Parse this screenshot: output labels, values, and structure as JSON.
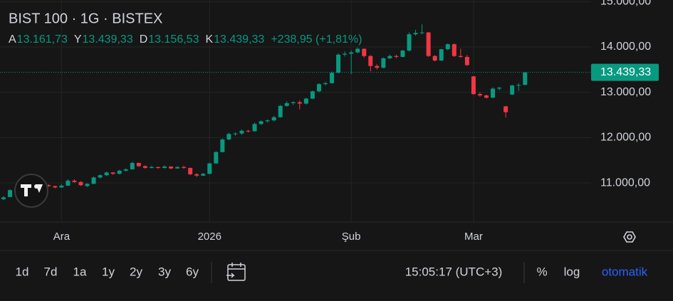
{
  "chart_data": {
    "type": "candlestick",
    "title": "BIST 100 · 1G · BISTEX",
    "ohlc_header": [
      {
        "label": "A",
        "value": "13.161,73"
      },
      {
        "label": "Y",
        "value": "13.439,33"
      },
      {
        "label": "D",
        "value": "13.156,53"
      },
      {
        "label": "K",
        "value": "13.439,33"
      }
    ],
    "change": "+238,95 (+1,81%)",
    "categories": [
      null,
      null,
      null,
      null,
      null,
      null,
      null,
      null,
      null,
      "Ara",
      null,
      null,
      null,
      null,
      null,
      null,
      null,
      null,
      null,
      null,
      null,
      null,
      null,
      null,
      null,
      null,
      null,
      null,
      null,
      null,
      null,
      null,
      "2026",
      null,
      null,
      null,
      null,
      null,
      null,
      null,
      null,
      null,
      null,
      null,
      null,
      null,
      null,
      null,
      null,
      null,
      null,
      null,
      null,
      null,
      "Şub",
      null,
      null,
      null,
      null,
      null,
      null,
      null,
      null,
      null,
      null,
      null,
      null,
      null,
      null,
      null,
      null,
      null,
      null,
      "Mar",
      null,
      null,
      null,
      null,
      null,
      null,
      null,
      null
    ],
    "open": [
      10640,
      10690,
      10840,
      10880,
      10920,
      10960,
      10990,
      10950,
      10930,
      10900,
      10940,
      11050,
      11020,
      10930,
      10980,
      11120,
      11170,
      11230,
      11200,
      11270,
      11300,
      11440,
      11370,
      11330,
      11350,
      11330,
      11360,
      11320,
      11350,
      11330,
      11190,
      11160,
      11200,
      11430,
      11680,
      11960,
      12080,
      12090,
      12150,
      12140,
      12300,
      12360,
      12380,
      12450,
      12700,
      12760,
      12780,
      12750,
      12860,
      13020,
      13180,
      13200,
      13430,
      13830,
      13850,
      13880,
      13960,
      13800,
      13580,
      13540,
      13750,
      13800,
      13780,
      13920,
      14280,
      14310,
      14320,
      13800,
      13700,
      13950,
      14060,
      13800,
      13780,
      13350,
      12960,
      12930,
      12880,
      13080,
      12690,
      12950,
      13150,
      13161.73
    ],
    "high": [
      10710,
      10860,
      10900,
      10930,
      10980,
      11010,
      11000,
      10970,
      10940,
      10970,
      11080,
      11080,
      11040,
      10990,
      11140,
      11190,
      11250,
      11240,
      11290,
      11320,
      11470,
      11450,
      11390,
      11380,
      11360,
      11390,
      11370,
      11370,
      11380,
      11340,
      11220,
      11220,
      11450,
      11700,
      11980,
      12110,
      12120,
      12180,
      12170,
      12330,
      12380,
      12400,
      12480,
      12720,
      12800,
      12800,
      12820,
      12880,
      13040,
      13200,
      13230,
      13460,
      13860,
      13900,
      13920,
      13990,
      13970,
      13820,
      13620,
      13770,
      13830,
      13830,
      13940,
      14320,
      14380,
      14500,
      14330,
      13820,
      13960,
      14080,
      14080,
      13960,
      13820,
      13360,
      13000,
      12950,
      13110,
      13120,
      12700,
      13170,
      13200,
      13439.33
    ],
    "low": [
      10620,
      10680,
      10820,
      10860,
      10900,
      10940,
      10930,
      10910,
      10880,
      10890,
      10930,
      11000,
      10930,
      10910,
      10970,
      11100,
      11150,
      11180,
      11190,
      11250,
      11290,
      11350,
      11310,
      11320,
      11310,
      11320,
      11300,
      11310,
      11310,
      11170,
      11130,
      11150,
      11190,
      11420,
      11670,
      11940,
      12040,
      12060,
      12110,
      12130,
      12280,
      12330,
      12360,
      12440,
      12680,
      12720,
      12620,
      12730,
      12850,
      13000,
      13150,
      13190,
      13420,
      13790,
      13400,
      13860,
      13760,
      13460,
      13500,
      13530,
      13730,
      13750,
      13770,
      13900,
      14250,
      14280,
      13780,
      13680,
      13690,
      13930,
      13780,
      13760,
      13580,
      12940,
      12900,
      12860,
      12870,
      13040,
      12440,
      12940,
      13030,
      13156.53
    ],
    "close": [
      10680,
      10840,
      10880,
      10920,
      10960,
      10990,
      10950,
      10930,
      10900,
      10940,
      11050,
      11020,
      10950,
      10980,
      11120,
      11170,
      11230,
      11200,
      11270,
      11300,
      11440,
      11370,
      11330,
      11350,
      11330,
      11360,
      11320,
      11350,
      11330,
      11190,
      11160,
      11200,
      11430,
      11680,
      11960,
      12080,
      12090,
      12150,
      12140,
      12300,
      12360,
      12380,
      12450,
      12700,
      12760,
      12780,
      12750,
      12860,
      13020,
      13180,
      13200,
      13430,
      13830,
      13850,
      13880,
      13960,
      13800,
      13580,
      13540,
      13750,
      13800,
      13780,
      13920,
      14280,
      14310,
      14320,
      13800,
      13700,
      13950,
      14060,
      13800,
      13780,
      13600,
      12960,
      12930,
      12880,
      13080,
      13100,
      12560,
      13150,
      13160,
      13439.33
    ],
    "up_color": "#089981",
    "down_color": "#f23645",
    "ylim": [
      10137,
      15036
    ],
    "yticks": [
      {
        "value": 11000,
        "label": "11.000,00"
      },
      {
        "value": 12000,
        "label": "12.000,00"
      },
      {
        "value": 13000,
        "label": "13.000,00"
      },
      {
        "value": 14000,
        "label": "14.000,00"
      },
      {
        "value": 15000,
        "label": "15.000,00"
      }
    ],
    "grid": true,
    "price_line": {
      "value": 13439.33,
      "label": "13.439,33"
    }
  },
  "toolbar": {
    "ranges": [
      "1d",
      "7d",
      "1a",
      "1y",
      "2y",
      "3y",
      "6y"
    ],
    "time": "15:05:17 (UTC+3)",
    "percent": "%",
    "log": "log",
    "auto": "otomatik"
  }
}
